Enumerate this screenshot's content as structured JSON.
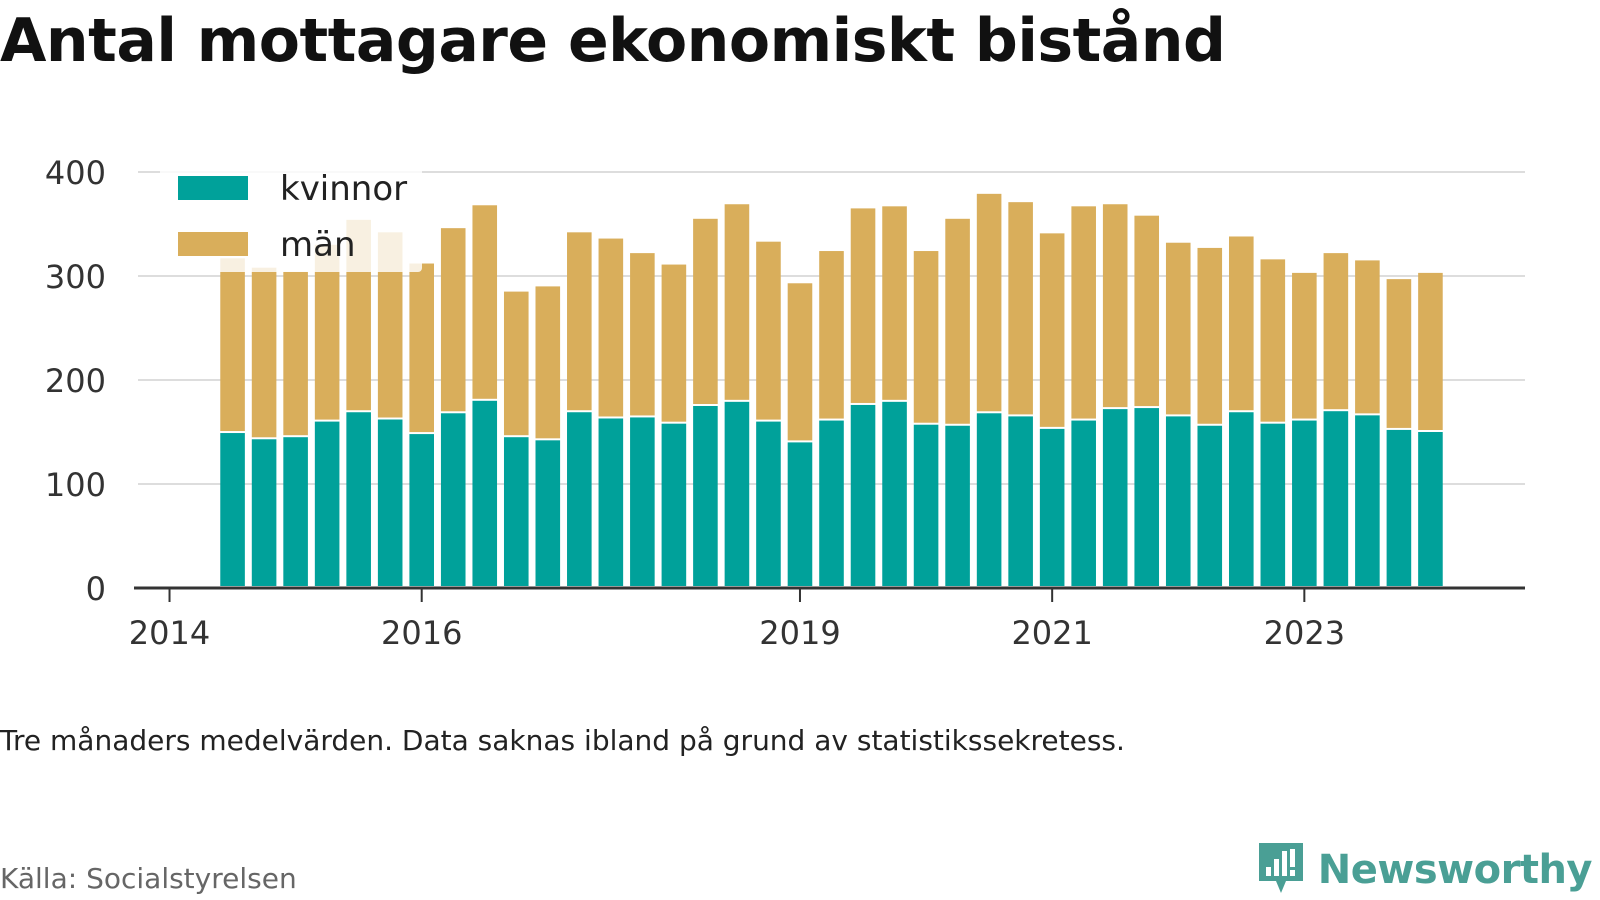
{
  "chart_data": {
    "type": "bar",
    "stacked": true,
    "title": "Antal mottagare ekonomiskt bistånd",
    "subtitle": "Tre månaders medelvärden. Data saknas ibland på grund av statistikssekretess.",
    "ylim": [
      0,
      400
    ],
    "yticks": [
      0,
      100,
      200,
      300,
      400
    ],
    "xlim": [
      2013.75,
      2024.75
    ],
    "xticks": [
      2014,
      2016,
      2019,
      2021,
      2023
    ],
    "xtick_labels": [
      "2014",
      "2016",
      "2019",
      "2021",
      "2023"
    ],
    "grid": true,
    "legend_position": "top-left",
    "x": [
      2014.5,
      2014.75,
      2015.0,
      2015.25,
      2015.5,
      2015.75,
      2016.0,
      2016.25,
      2016.5,
      2016.75,
      2017.0,
      2017.25,
      2017.5,
      2017.75,
      2018.0,
      2018.25,
      2018.5,
      2018.75,
      2019.0,
      2019.25,
      2019.5,
      2019.75,
      2020.0,
      2020.25,
      2020.5,
      2020.75,
      2021.0,
      2021.25,
      2021.5,
      2021.75,
      2022.0,
      2022.25,
      2022.5,
      2022.75,
      2023.0,
      2023.25,
      2023.5,
      2023.75,
      2024.0
    ],
    "series": [
      {
        "name": "kvinnor",
        "color": "#00a19a",
        "values": [
          149,
          143,
          145,
          160,
          169,
          162,
          148,
          168,
          180,
          145,
          142,
          169,
          163,
          164,
          158,
          175,
          179,
          160,
          140,
          161,
          176,
          179,
          157,
          156,
          168,
          165,
          153,
          161,
          172,
          173,
          165,
          156,
          169,
          158,
          161,
          170,
          166,
          152,
          150
        ]
      },
      {
        "name": "män",
        "color": "#d9ae5b",
        "values": [
          168,
          165,
          159,
          170,
          185,
          180,
          164,
          178,
          188,
          140,
          148,
          173,
          173,
          158,
          153,
          180,
          190,
          173,
          153,
          163,
          189,
          188,
          167,
          199,
          211,
          206,
          188,
          206,
          197,
          185,
          167,
          171,
          169,
          158,
          142,
          152,
          149,
          145,
          153
        ]
      }
    ]
  },
  "footer": {
    "source": "Källa: Socialstyrelsen",
    "brand": "Newsworthy",
    "brand_color": "#4a9f95"
  }
}
